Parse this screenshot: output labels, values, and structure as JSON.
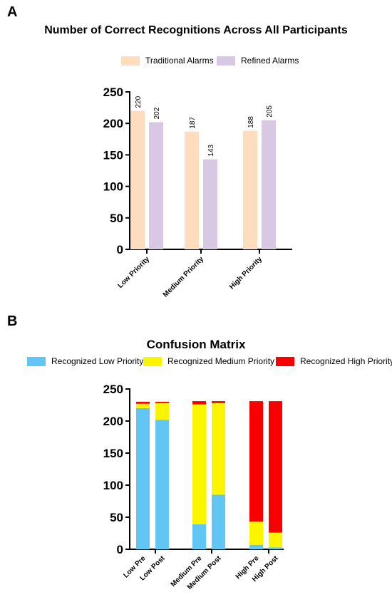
{
  "panels": {
    "a_letter": "A",
    "b_letter": "B"
  },
  "colors": {
    "traditional": "#FDDDBE",
    "refined": "#D8C8E3",
    "low": "#62C6F4",
    "medium": "#FCF500",
    "high": "#F80000"
  },
  "chart_data": [
    {
      "type": "bar",
      "title": "Number of Correct Recognitions Across All Participants",
      "xlabel": "",
      "ylabel": "",
      "categories": [
        "Low Priority",
        "Medium Priority",
        "High Priority"
      ],
      "series": [
        {
          "name": "Traditional Alarms",
          "values": [
            220,
            187,
            188
          ]
        },
        {
          "name": "Refined Alarms",
          "values": [
            202,
            143,
            205
          ]
        }
      ],
      "data_labels": true,
      "ylim": [
        0,
        250
      ],
      "yticks": [
        0,
        50,
        100,
        150,
        200,
        250
      ],
      "legend": "top"
    },
    {
      "type": "bar",
      "stacked": true,
      "title": "Confusion Matrix",
      "xlabel": "",
      "ylabel": "",
      "categories": [
        "Low Pre",
        "Low Post",
        "Medium Pre",
        "Medium Post",
        "High Pre",
        "High Post"
      ],
      "series": [
        {
          "name": "Recognized Low Priority",
          "values": [
            220,
            202,
            39,
            85,
            7,
            3
          ]
        },
        {
          "name": "Recognized Medium Priority",
          "values": [
            7,
            26,
            187,
            143,
            36,
            23
          ]
        },
        {
          "name": "Recognized High Priority",
          "values": [
            3,
            2,
            5,
            3,
            188,
            205
          ]
        }
      ],
      "ylim": [
        0,
        250
      ],
      "yticks": [
        0,
        50,
        100,
        150,
        200,
        250
      ],
      "legend": "top"
    }
  ]
}
